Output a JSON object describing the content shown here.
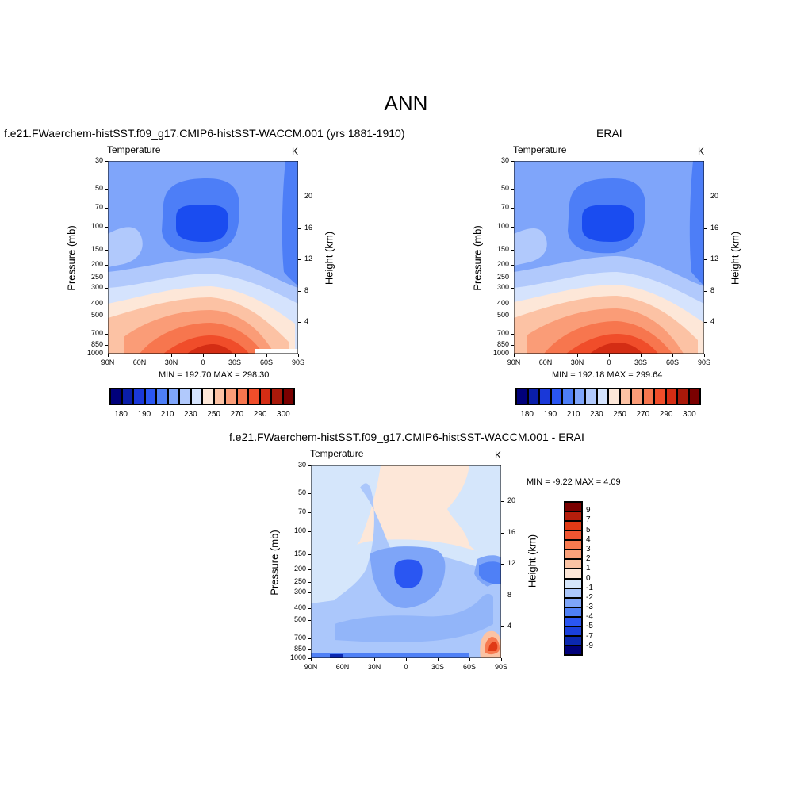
{
  "page": {
    "title": "ANN"
  },
  "colors": {
    "model_palette": [
      "#00007a",
      "#0a1ea8",
      "#1a38d8",
      "#2a56f2",
      "#4d7ef7",
      "#7fa5fa",
      "#b1c9fc",
      "#d5e3fd",
      "#fde7d8",
      "#fcc2a4",
      "#fa9c77",
      "#f7764e",
      "#f04d2a",
      "#d42d14",
      "#a8190a",
      "#7a0000"
    ],
    "diff_palette": [
      "#00007a",
      "#0b28b0",
      "#1a40dc",
      "#2a56f2",
      "#4f80f6",
      "#7ea5f8",
      "#abc7fb",
      "#d5e6fb",
      "#fde7d8",
      "#fbc3a4",
      "#f9a07a",
      "#f77a50",
      "#ef5532",
      "#e03a16",
      "#b51e0c",
      "#7a0000"
    ]
  },
  "chart_data": [
    {
      "id": "panel_model",
      "type": "heatmap",
      "panel_title": "f.e21.FWaerchem-histSST.f09_g17.CMIP6-histSST-WACCM.001 (yrs 1881-1910)",
      "left_label": "Temperature",
      "right_label": "K",
      "ylabel": "Pressure (mb)",
      "ylabel_right": "Height (km)",
      "x_ticks": [
        "90N",
        "60N",
        "30N",
        "0",
        "30S",
        "60S",
        "90S"
      ],
      "y_ticks": [
        "30",
        "50",
        "70",
        "100",
        "150",
        "200",
        "250",
        "300",
        "400",
        "500",
        "700",
        "850",
        "1000"
      ],
      "y_ticks_right": [
        "20",
        "16",
        "12",
        "8",
        "4"
      ],
      "stats": "MIN = 192.70  MAX = 298.30",
      "min": 192.7,
      "max": 298.3,
      "colorbar_labels": [
        "180",
        "190",
        "210",
        "230",
        "250",
        "270",
        "290",
        "300"
      ]
    },
    {
      "id": "panel_obs",
      "type": "heatmap",
      "panel_title": "ERAI",
      "left_label": "Temperature",
      "right_label": "K",
      "ylabel": "Pressure (mb)",
      "ylabel_right": "Height (km)",
      "x_ticks": [
        "90N",
        "60N",
        "30N",
        "0",
        "30S",
        "60S",
        "90S"
      ],
      "y_ticks": [
        "30",
        "50",
        "70",
        "100",
        "150",
        "200",
        "250",
        "300",
        "400",
        "500",
        "700",
        "850",
        "1000"
      ],
      "y_ticks_right": [
        "20",
        "16",
        "12",
        "8",
        "4"
      ],
      "stats": "MIN = 192.18  MAX = 299.64",
      "min": 192.18,
      "max": 299.64,
      "colorbar_labels": [
        "180",
        "190",
        "210",
        "230",
        "250",
        "270",
        "290",
        "300"
      ]
    },
    {
      "id": "panel_diff",
      "type": "heatmap",
      "panel_title": "f.e21.FWaerchem-histSST.f09_g17.CMIP6-histSST-WACCM.001 - ERAI",
      "left_label": "Temperature",
      "right_label": "K",
      "ylabel": "Pressure (mb)",
      "ylabel_right": "Height (km)",
      "x_ticks": [
        "90N",
        "60N",
        "30N",
        "0",
        "30S",
        "60S",
        "90S"
      ],
      "y_ticks": [
        "30",
        "50",
        "70",
        "100",
        "150",
        "200",
        "250",
        "300",
        "400",
        "500",
        "700",
        "850",
        "1000"
      ],
      "y_ticks_right": [
        "20",
        "16",
        "12",
        "8",
        "4"
      ],
      "stats": "MIN =  -9.22  MAX =   4.09",
      "min": -9.22,
      "max": 4.09,
      "colorbar_labels": [
        "9",
        "7",
        "5",
        "4",
        "3",
        "2",
        "1",
        "0",
        "-1",
        "-2",
        "-3",
        "-4",
        "-5",
        "-7",
        "-9"
      ]
    }
  ]
}
